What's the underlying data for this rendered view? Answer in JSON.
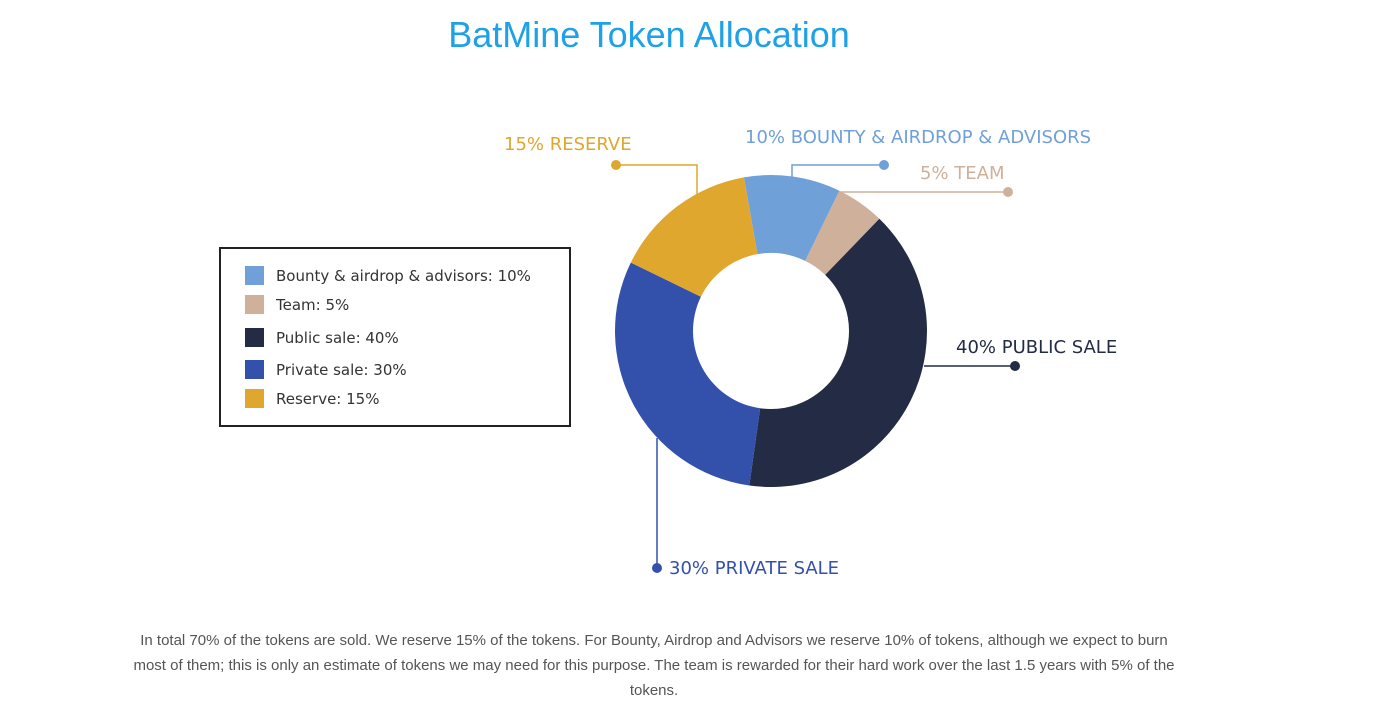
{
  "title": "BatMine Token Allocation",
  "chart_data": {
    "type": "pie",
    "variant": "donut",
    "categories": [
      "Bounty & airdrop & advisors",
      "Team",
      "Public sale",
      "Private sale",
      "Reserve"
    ],
    "values": [
      10,
      5,
      40,
      30,
      15
    ],
    "colors": [
      "#6fa0d8",
      "#cfb09a",
      "#242b45",
      "#3350ab",
      "#dfa72d"
    ],
    "slice_labels": [
      "10%  BOUNTY & AIRDROP & ADVISORS",
      "5% TEAM",
      "40% PUBLIC SALE",
      "30% PRIVATE SALE",
      "15% RESERVE"
    ],
    "legend": {
      "placement": "left",
      "entries": [
        "Bounty & airdrop & advisors: 10%",
        "Team: 5%",
        "Public sale: 40%",
        "Private sale: 30%",
        "Reserve: 15%"
      ]
    }
  },
  "description": "In total 70% of the tokens are sold. We reserve 15% of the tokens. For Bounty, Airdrop and Advisors we reserve 10% of tokens, although we expect to burn most of them; this is only an estimate of tokens we may need for this purpose. The team is rewarded for their hard work over the last 1.5 years with 5% of the tokens."
}
